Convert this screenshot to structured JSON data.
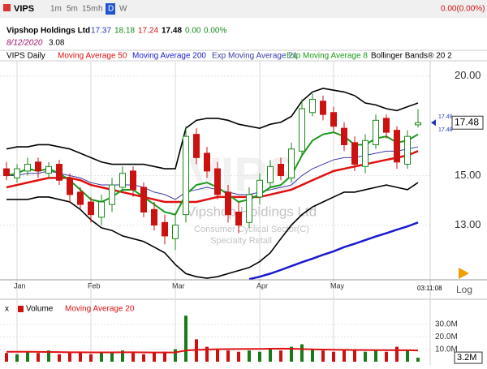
{
  "toolbar": {
    "ticker": "VIPS",
    "intervals": [
      "1m",
      "5m",
      "15m",
      "h",
      "D",
      "W"
    ],
    "change": "0.00(0.00%)",
    "date": "8/12/2020",
    "volume": "3.08",
    "net_change": "0.00",
    "pct_change": "0.00%",
    "clock": "03:11:08",
    "scale": "Log"
  },
  "chart_data": {
    "type": "candlestick",
    "title": "Vipshop Holdings Ltd",
    "subtitle": [
      "Consumer Cyclical Sector(C)",
      "Specialty Retail"
    ],
    "name": "VIPS Daily",
    "categories": [
      null,
      "Jan",
      null,
      null,
      null,
      null,
      null,
      null,
      "Feb",
      null,
      null,
      null,
      null,
      null,
      null,
      null,
      "Mar",
      null,
      null,
      null,
      null,
      null,
      null,
      null,
      "Apr",
      null,
      null,
      null,
      null,
      null,
      null,
      "May",
      null,
      null,
      null,
      null,
      null,
      null,
      null,
      null
    ],
    "open": [
      15.3,
      14.9,
      15.2,
      15.6,
      15.1,
      15.5,
      14.9,
      14.3,
      13.9,
      13.3,
      13.8,
      14.5,
      15.2,
      14.5,
      13.6,
      13.1,
      12.5,
      13.4,
      16.9,
      16.0,
      15.3,
      14.3,
      13.5,
      13.1,
      14.1,
      14.7,
      15.5,
      14.9,
      16.1,
      18.0,
      18.6,
      18.0,
      17.2,
      16.5,
      15.4,
      16.4,
      17.7,
      17.1,
      15.5,
      17.37
    ],
    "high": [
      15.6,
      15.5,
      15.8,
      15.8,
      15.6,
      15.7,
      15.1,
      14.5,
      14.1,
      14.2,
      14.9,
      15.4,
      15.4,
      14.7,
      13.9,
      13.4,
      13.4,
      17.3,
      17.2,
      16.3,
      15.6,
      14.6,
      13.9,
      14.5,
      15.1,
      15.7,
      15.8,
      16.5,
      18.7,
      19.0,
      18.9,
      18.3,
      17.5,
      16.8,
      16.9,
      17.9,
      17.9,
      17.3,
      17.1,
      18.18
    ],
    "low": [
      14.8,
      14.7,
      15.0,
      14.9,
      14.9,
      14.6,
      13.9,
      13.6,
      13.1,
      13.0,
      13.5,
      14.3,
      14.1,
      13.3,
      12.8,
      12.3,
      12.1,
      13.1,
      15.5,
      14.9,
      14.0,
      13.1,
      12.7,
      12.9,
      13.8,
      14.5,
      14.8,
      14.7,
      15.9,
      17.8,
      17.6,
      17.0,
      16.1,
      15.2,
      15.1,
      16.2,
      16.7,
      15.3,
      15.3,
      17.24
    ],
    "close": [
      15.0,
      15.3,
      15.5,
      15.2,
      15.4,
      14.8,
      14.2,
      13.8,
      13.4,
      13.9,
      14.6,
      15.1,
      14.4,
      13.5,
      13.0,
      12.6,
      13.0,
      16.8,
      15.8,
      15.2,
      14.2,
      13.4,
      13.0,
      14.2,
      14.8,
      15.4,
      15.0,
      16.2,
      18.2,
      18.7,
      17.9,
      17.3,
      16.4,
      15.5,
      16.6,
      17.6,
      17.0,
      15.6,
      16.8,
      17.48
    ],
    "up_color": "#1a8a1a",
    "down_color": "#cc1111",
    "series": [
      {
        "name": "Moving Average 50",
        "color": "#e01010",
        "width": 2.5,
        "values": [
          14.5,
          14.6,
          14.7,
          14.8,
          14.9,
          14.9,
          14.9,
          14.8,
          14.6,
          14.5,
          14.4,
          14.3,
          14.2,
          14.1,
          14.0,
          13.9,
          13.9,
          13.9,
          13.9,
          14.0,
          14.1,
          14.1,
          14.1,
          14.1,
          14.1,
          14.2,
          14.3,
          14.4,
          14.6,
          14.8,
          15.0,
          15.2,
          15.3,
          15.4,
          15.5,
          15.6,
          15.7,
          15.8,
          15.9,
          16.1
        ]
      },
      {
        "name": "Moving Average 200",
        "color": "#1a1ad0",
        "width": 2.5,
        "values": [
          null,
          null,
          null,
          null,
          null,
          null,
          null,
          null,
          null,
          null,
          null,
          null,
          null,
          null,
          null,
          null,
          null,
          null,
          null,
          null,
          null,
          null,
          null,
          11.12,
          11.2,
          11.3,
          11.42,
          11.55,
          11.68,
          11.8,
          11.93,
          12.05,
          12.2,
          12.32,
          12.45,
          12.58,
          12.7,
          12.83,
          12.95,
          13.1
        ]
      },
      {
        "name": "Exp Moving Average 21",
        "color": "#3a3aa8",
        "width": 1,
        "values": [
          15.0,
          15.0,
          15.1,
          15.1,
          15.2,
          15.1,
          15.0,
          14.9,
          14.7,
          14.6,
          14.6,
          14.6,
          14.6,
          14.5,
          14.3,
          14.2,
          14.0,
          14.3,
          14.4,
          14.5,
          14.4,
          14.3,
          14.2,
          14.2,
          14.3,
          14.4,
          14.5,
          14.6,
          15.0,
          15.3,
          15.5,
          15.7,
          15.8,
          15.8,
          15.9,
          16.0,
          16.1,
          16.1,
          16.2,
          16.3
        ]
      },
      {
        "name": "Exp Moving Average 8",
        "color": "#1a9a1a",
        "width": 2,
        "values": [
          15.0,
          15.1,
          15.3,
          15.2,
          15.3,
          15.1,
          14.8,
          14.4,
          14.0,
          13.9,
          14.1,
          14.4,
          14.4,
          14.1,
          13.8,
          13.5,
          13.4,
          14.2,
          14.6,
          14.7,
          14.5,
          14.2,
          13.9,
          14.0,
          14.2,
          14.5,
          14.6,
          15.0,
          15.9,
          16.6,
          16.9,
          17.0,
          16.8,
          16.4,
          16.4,
          16.7,
          16.8,
          16.5,
          16.6,
          16.9
        ]
      }
    ],
    "bands": {
      "name": "Bollinger Bands® 20 2",
      "color": "#000000",
      "upper": [
        16.2,
        16.3,
        16.3,
        16.4,
        16.4,
        16.3,
        16.2,
        16.0,
        15.8,
        15.6,
        15.5,
        15.5,
        15.5,
        15.5,
        15.4,
        15.3,
        15.3,
        17.2,
        17.6,
        17.7,
        17.7,
        17.6,
        17.4,
        17.3,
        17.2,
        17.4,
        17.5,
        17.8,
        18.6,
        19.1,
        19.3,
        19.2,
        19.1,
        18.9,
        18.5,
        18.4,
        18.2,
        18.1,
        18.3,
        18.5
      ],
      "lower": [
        14.0,
        14.0,
        14.0,
        14.1,
        14.1,
        14.0,
        13.9,
        13.6,
        13.2,
        12.9,
        12.8,
        12.6,
        12.5,
        12.4,
        12.2,
        12.0,
        11.6,
        11.3,
        11.2,
        11.15,
        11.2,
        11.3,
        11.4,
        11.5,
        11.7,
        12.0,
        12.5,
        13.0,
        13.4,
        13.7,
        13.9,
        14.1,
        14.3,
        14.3,
        14.4,
        14.5,
        14.6,
        14.5,
        14.4,
        14.7
      ]
    },
    "price_markers": [
      17.49,
      17.48
    ],
    "ylim": [
      11.1,
      20.9
    ],
    "log_scale": true,
    "yticks": [
      {
        "value": 20,
        "label": "20.00"
      },
      {
        "value": 15,
        "label": "15.00"
      },
      {
        "value": 13,
        "label": "13.00"
      }
    ],
    "volume": {
      "name": "Volume",
      "color_up": "#1a7a1a",
      "color_down": "#cc1111",
      "values": [
        7,
        6,
        8,
        7,
        9,
        6,
        7,
        8,
        6,
        7,
        8,
        9,
        7,
        6,
        7,
        8,
        10,
        37,
        18,
        12,
        10,
        9,
        8,
        9,
        8,
        10,
        9,
        12,
        14,
        10,
        9,
        8,
        9,
        10,
        8,
        9,
        8,
        12,
        9,
        3.2
      ],
      "value_labels": [
        null,
        null,
        null,
        null,
        null,
        null,
        null,
        null,
        null,
        null,
        null,
        null,
        null,
        null,
        null,
        null,
        null,
        null,
        null,
        null,
        null,
        null,
        null,
        null,
        null,
        null,
        null,
        null,
        null,
        null,
        null,
        null,
        null,
        null,
        null,
        null,
        null,
        null,
        null,
        "3.2M"
      ],
      "ma": {
        "name": "Moving Average 20",
        "color": "#e01010",
        "values": [
          8,
          8,
          8,
          7.9,
          7.8,
          7.7,
          7.6,
          7.6,
          7.5,
          7.5,
          7.5,
          7.6,
          7.6,
          7.5,
          7.4,
          7.4,
          7.5,
          9,
          9.5,
          9.8,
          10,
          10.1,
          10.2,
          10.3,
          10.3,
          10.4,
          10.5,
          10.4,
          10.2,
          9.9,
          9.8,
          9.6,
          9.5,
          9.4,
          9.4,
          9.3,
          9.3,
          9.2,
          9.2,
          9.0
        ]
      },
      "ylim": [
        0,
        43
      ],
      "yticks": [
        {
          "value": 30,
          "label": "30.0M"
        },
        {
          "value": 20,
          "label": "20.0M"
        },
        {
          "value": 10,
          "label": "10.0M"
        }
      ]
    }
  }
}
